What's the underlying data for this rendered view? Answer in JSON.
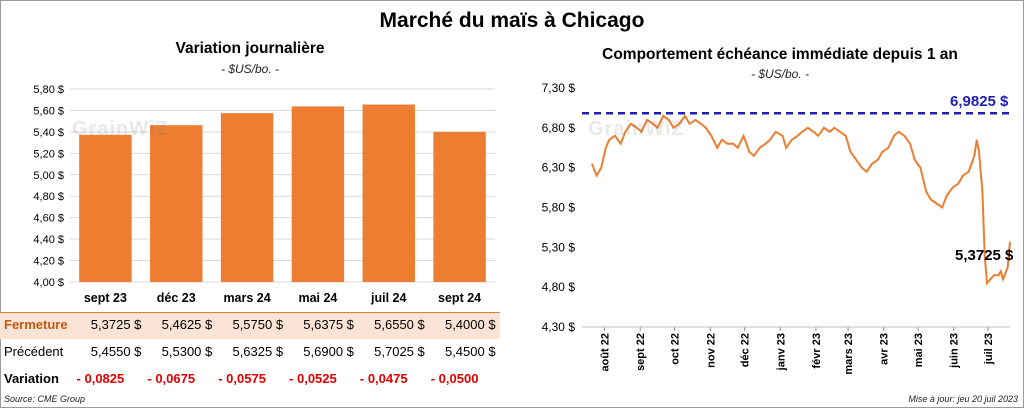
{
  "title": "Marché du maïs à Chicago",
  "left_chart": {
    "title": "Variation journalière",
    "unit": "- $US/bo. -"
  },
  "right_chart": {
    "title": "Comportement  échéance immédiate depuis 1 an",
    "unit": "- $US/bo. -",
    "ref_label": "6,9825 $",
    "last_label": "5,3725 $"
  },
  "watermark": "GrainWiZ",
  "table": {
    "rows": [
      {
        "label": "Fermeture",
        "values": [
          "5,3725  $",
          "5,4625  $",
          "5,5750  $",
          "5,6375  $",
          "5,6550  $",
          "5,4000  $"
        ]
      },
      {
        "label": "Précédent",
        "values": [
          "5,4550  $",
          "5,5300  $",
          "5,6325  $",
          "5,6900  $",
          "5,7025  $",
          "5,4500  $"
        ]
      },
      {
        "label": "Variation",
        "values": [
          "- 0,0825",
          "- 0,0675",
          "- 0,0575",
          "- 0,0525",
          "- 0,0475",
          "- 0,0500"
        ]
      }
    ]
  },
  "footer": {
    "source": "Source: CME Group",
    "updated": "Mise à jour: jeu 20 juil 2023"
  },
  "colors": {
    "bar": "#ED7D31",
    "line": "#ED7D31",
    "reference": "#1F1FB4",
    "fermeture_bg": "#FBE4D5",
    "variation_text": "#E00000",
    "grid": "#D9D9D9"
  },
  "chart_data": [
    {
      "type": "bar",
      "title": "Variation journalière",
      "ylabel": "- $US/bo. -",
      "categories": [
        "sept 23",
        "déc 23",
        "mars 24",
        "mai 24",
        "juil 24",
        "sept 24"
      ],
      "values": [
        5.3725,
        5.4625,
        5.575,
        5.6375,
        5.655,
        5.4
      ],
      "ylim": [
        4.0,
        5.8
      ],
      "yticks": [
        "4,00 $",
        "4,20 $",
        "4,40 $",
        "4,60 $",
        "4,80 $",
        "5,00 $",
        "5,20 $",
        "5,40 $",
        "5,60 $",
        "5,80 $"
      ],
      "grid": true
    },
    {
      "type": "line",
      "title": "Comportement  échéance immédiate depuis 1 an",
      "ylabel": "- $US/bo. -",
      "ylim": [
        4.3,
        7.3
      ],
      "yticks": [
        "4,30 $",
        "4,80 $",
        "5,30 $",
        "5,80 $",
        "6,30 $",
        "6,80 $",
        "7,30 $"
      ],
      "xticks": [
        "août 22",
        "sept 22",
        "oct 22",
        "nov 22",
        "déc 22",
        "janv 23",
        "févr 23",
        "mars 23",
        "avr 23",
        "mai 23",
        "juin 23",
        "juil 23"
      ],
      "reference_line": 6.9825,
      "last_value": 5.3725,
      "grid": false,
      "series": [
        {
          "x": [
            "2022-07-21",
            "2022-07-25",
            "2022-07-29",
            "2022-08-02",
            "2022-08-05",
            "2022-08-10",
            "2022-08-15",
            "2022-08-19",
            "2022-08-24",
            "2022-08-29",
            "2022-09-02",
            "2022-09-07",
            "2022-09-12",
            "2022-09-16",
            "2022-09-21",
            "2022-09-26",
            "2022-09-30",
            "2022-10-05",
            "2022-10-10",
            "2022-10-14",
            "2022-10-19",
            "2022-10-24",
            "2022-10-28",
            "2022-11-02",
            "2022-11-07",
            "2022-11-11",
            "2022-11-16",
            "2022-11-21",
            "2022-11-25",
            "2022-11-30",
            "2022-12-05",
            "2022-12-09",
            "2022-12-14",
            "2022-12-19",
            "2022-12-23",
            "2022-12-28",
            "2023-01-03",
            "2023-01-06",
            "2023-01-11",
            "2023-01-16",
            "2023-01-20",
            "2023-01-25",
            "2023-01-30",
            "2023-02-03",
            "2023-02-08",
            "2023-02-13",
            "2023-02-17",
            "2023-02-22",
            "2023-02-27",
            "2023-03-03",
            "2023-03-08",
            "2023-03-13",
            "2023-03-17",
            "2023-03-22",
            "2023-03-27",
            "2023-03-31",
            "2023-04-05",
            "2023-04-10",
            "2023-04-14",
            "2023-04-19",
            "2023-04-24",
            "2023-04-28",
            "2023-05-03",
            "2023-05-08",
            "2023-05-12",
            "2023-05-17",
            "2023-05-22",
            "2023-05-26",
            "2023-05-31",
            "2023-06-05",
            "2023-06-09",
            "2023-06-14",
            "2023-06-19",
            "2023-06-21",
            "2023-06-23",
            "2023-06-26",
            "2023-06-28",
            "2023-06-30",
            "2023-07-03",
            "2023-07-06",
            "2023-07-10",
            "2023-07-12",
            "2023-07-14",
            "2023-07-18",
            "2023-07-20"
          ],
          "y": [
            6.35,
            6.2,
            6.3,
            6.55,
            6.65,
            6.7,
            6.6,
            6.75,
            6.85,
            6.8,
            6.75,
            6.9,
            6.85,
            6.8,
            6.95,
            6.9,
            6.8,
            6.85,
            6.95,
            6.85,
            6.9,
            6.85,
            6.8,
            6.7,
            6.55,
            6.65,
            6.6,
            6.6,
            6.55,
            6.7,
            6.5,
            6.45,
            6.55,
            6.6,
            6.65,
            6.75,
            6.7,
            6.55,
            6.65,
            6.7,
            6.75,
            6.8,
            6.75,
            6.7,
            6.8,
            6.75,
            6.8,
            6.75,
            6.7,
            6.5,
            6.4,
            6.3,
            6.25,
            6.35,
            6.4,
            6.5,
            6.55,
            6.7,
            6.75,
            6.7,
            6.6,
            6.4,
            6.3,
            6.0,
            5.9,
            5.85,
            5.8,
            5.95,
            6.05,
            6.1,
            6.2,
            6.25,
            6.45,
            6.65,
            6.5,
            6.0,
            5.2,
            4.85,
            4.9,
            4.95,
            4.95,
            5.0,
            4.9,
            5.05,
            5.3725
          ]
        }
      ]
    }
  ]
}
